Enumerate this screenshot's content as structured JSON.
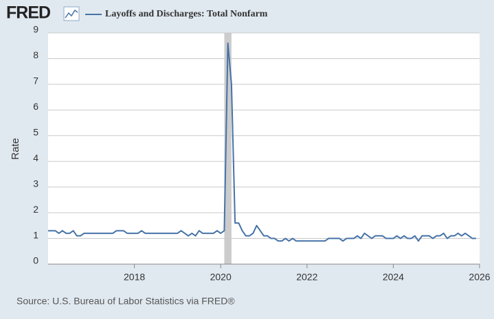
{
  "chart_data": {
    "type": "line",
    "logo": "FRED",
    "source": "Source: U.S. Bureau of Labor Statistics via FRED®",
    "ylabel": "Rate",
    "recession": [
      "2020-02",
      "2020-04"
    ],
    "recession_color": "#cccccc",
    "grid": true,
    "xlim": [
      2016,
      2026
    ],
    "xticks": [
      2018,
      2020,
      2022,
      2024,
      2026
    ],
    "ylim": [
      0,
      9
    ],
    "yticks": [
      0,
      1,
      2,
      3,
      4,
      5,
      6,
      7,
      8,
      9
    ],
    "x": [
      "2016-01",
      "2016-02",
      "2016-03",
      "2016-04",
      "2016-05",
      "2016-06",
      "2016-07",
      "2016-08",
      "2016-09",
      "2016-10",
      "2016-11",
      "2016-12",
      "2017-01",
      "2017-02",
      "2017-03",
      "2017-04",
      "2017-05",
      "2017-06",
      "2017-07",
      "2017-08",
      "2017-09",
      "2017-10",
      "2017-11",
      "2017-12",
      "2018-01",
      "2018-02",
      "2018-03",
      "2018-04",
      "2018-05",
      "2018-06",
      "2018-07",
      "2018-08",
      "2018-09",
      "2018-10",
      "2018-11",
      "2018-12",
      "2019-01",
      "2019-02",
      "2019-03",
      "2019-04",
      "2019-05",
      "2019-06",
      "2019-07",
      "2019-08",
      "2019-09",
      "2019-10",
      "2019-11",
      "2019-12",
      "2020-01",
      "2020-02",
      "2020-03",
      "2020-04",
      "2020-05",
      "2020-06",
      "2020-07",
      "2020-08",
      "2020-09",
      "2020-10",
      "2020-11",
      "2020-12",
      "2021-01",
      "2021-02",
      "2021-03",
      "2021-04",
      "2021-05",
      "2021-06",
      "2021-07",
      "2021-08",
      "2021-09",
      "2021-10",
      "2021-11",
      "2021-12",
      "2022-01",
      "2022-02",
      "2022-03",
      "2022-04",
      "2022-05",
      "2022-06",
      "2022-07",
      "2022-08",
      "2022-09",
      "2022-10",
      "2022-11",
      "2022-12",
      "2023-01",
      "2023-02",
      "2023-03",
      "2023-04",
      "2023-05",
      "2023-06",
      "2023-07",
      "2023-08",
      "2023-09",
      "2023-10",
      "2023-11",
      "2023-12",
      "2024-01",
      "2024-02",
      "2024-03",
      "2024-04",
      "2024-05",
      "2024-06",
      "2024-07",
      "2024-08",
      "2024-09",
      "2024-10",
      "2024-11",
      "2024-12",
      "2025-01",
      "2025-02",
      "2025-03",
      "2025-04",
      "2025-05",
      "2025-06",
      "2025-07",
      "2025-08",
      "2025-09",
      "2025-10",
      "2025-11",
      "2025-12"
    ],
    "series": [
      {
        "name": "Layoffs and Discharges: Total Nonfarm",
        "color": "#4572a7",
        "values": [
          1.3,
          1.3,
          1.3,
          1.2,
          1.3,
          1.2,
          1.2,
          1.3,
          1.1,
          1.1,
          1.2,
          1.2,
          1.2,
          1.2,
          1.2,
          1.2,
          1.2,
          1.2,
          1.2,
          1.3,
          1.3,
          1.3,
          1.2,
          1.2,
          1.2,
          1.2,
          1.3,
          1.2,
          1.2,
          1.2,
          1.2,
          1.2,
          1.2,
          1.2,
          1.2,
          1.2,
          1.2,
          1.3,
          1.2,
          1.1,
          1.2,
          1.1,
          1.3,
          1.2,
          1.2,
          1.2,
          1.2,
          1.3,
          1.2,
          1.3,
          8.6,
          7.0,
          1.6,
          1.6,
          1.3,
          1.1,
          1.1,
          1.2,
          1.5,
          1.3,
          1.1,
          1.1,
          1.0,
          1.0,
          0.9,
          0.9,
          1.0,
          0.9,
          1.0,
          0.9,
          0.9,
          0.9,
          0.9,
          0.9,
          0.9,
          0.9,
          0.9,
          0.9,
          1.0,
          1.0,
          1.0,
          1.0,
          0.9,
          1.0,
          1.0,
          1.0,
          1.1,
          1.0,
          1.2,
          1.1,
          1.0,
          1.1,
          1.1,
          1.1,
          1.0,
          1.0,
          1.0,
          1.1,
          1.0,
          1.1,
          1.0,
          1.0,
          1.1,
          0.9,
          1.1,
          1.1,
          1.1,
          1.0,
          1.1,
          1.1,
          1.2,
          1.0,
          1.1,
          1.1,
          1.2,
          1.1,
          1.2,
          1.1,
          1.0,
          1.0
        ]
      }
    ]
  }
}
